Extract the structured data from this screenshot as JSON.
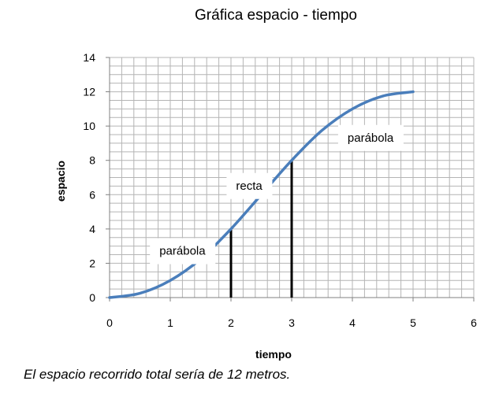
{
  "chart_data": {
    "type": "line",
    "title": "Gráfica espacio - tiempo",
    "xlabel": "tiempo",
    "ylabel": "espacio",
    "xlim": [
      0,
      6
    ],
    "ylim": [
      0,
      14
    ],
    "x_ticks": [
      "0",
      "1",
      "2",
      "3",
      "4",
      "5",
      "6"
    ],
    "y_ticks": [
      "0",
      "2",
      "4",
      "6",
      "8",
      "10",
      "12",
      "14"
    ],
    "grid": true,
    "series": [
      {
        "color": "#4a7ebb",
        "x": [
          0,
          0.5,
          1,
          1.5,
          2,
          2.5,
          3,
          3.5,
          4,
          4.5,
          5
        ],
        "y": [
          0,
          0.25,
          1,
          2.25,
          4,
          6,
          8,
          9.75,
          11,
          11.75,
          12
        ]
      }
    ],
    "vertical_markers": [
      {
        "x": 2,
        "y": 4
      },
      {
        "x": 3,
        "y": 8
      }
    ],
    "annotations": [
      {
        "text": "parábola",
        "x": 1.2,
        "y": 2.5
      },
      {
        "text": "recta",
        "x": 2.3,
        "y": 6.3
      },
      {
        "text": "parábola",
        "x": 4.3,
        "y": 9.1
      }
    ]
  },
  "caption": "El espacio recorrido total sería de 12 metros."
}
